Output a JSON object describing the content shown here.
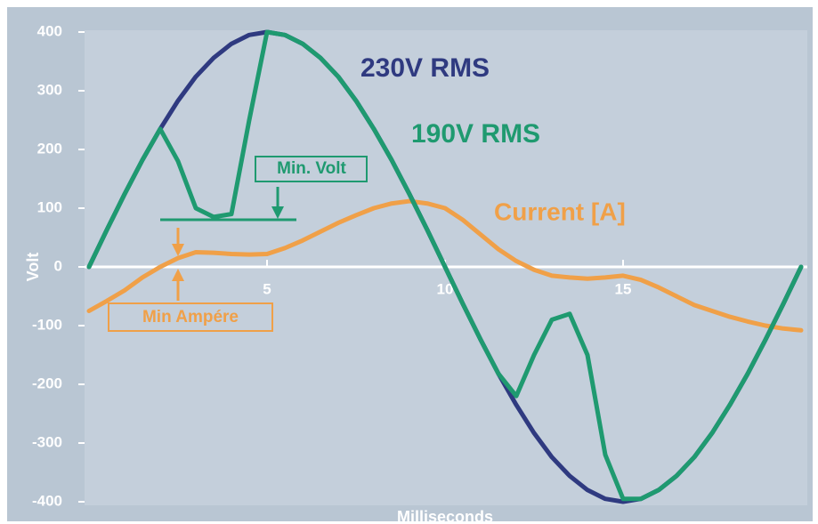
{
  "chart_data": {
    "type": "line",
    "x_label": "Milliseconds",
    "y_label": "Volt",
    "x": [
      0,
      0.5,
      1,
      1.5,
      2,
      2.5,
      3,
      3.5,
      4,
      4.5,
      5,
      5.5,
      6,
      6.5,
      7,
      7.5,
      8,
      8.5,
      9,
      9.5,
      10,
      10.5,
      11,
      11.5,
      12,
      12.5,
      13,
      13.5,
      14,
      14.5,
      15,
      15.5,
      16,
      16.5,
      17,
      17.5,
      18,
      18.5,
      19,
      19.5,
      20
    ],
    "series": [
      {
        "name": "230V RMS",
        "color": "#2f3a80",
        "values": [
          0,
          63,
          124,
          182,
          235,
          283,
          324,
          356,
          380,
          395,
          400,
          395,
          380,
          356,
          324,
          283,
          235,
          182,
          124,
          63,
          0,
          -63,
          -124,
          -182,
          -235,
          -283,
          -324,
          -356,
          -380,
          -395,
          -400,
          -395,
          -380,
          -356,
          -324,
          -283,
          -235,
          -182,
          -124,
          -63,
          0
        ]
      },
      {
        "name": "190V RMS",
        "color": "#1f9a70",
        "values": [
          0,
          63,
          124,
          182,
          235,
          180,
          100,
          85,
          90,
          250,
          400,
          395,
          380,
          356,
          324,
          283,
          235,
          182,
          124,
          63,
          0,
          -63,
          -124,
          -182,
          -220,
          -150,
          -90,
          -80,
          -150,
          -320,
          -395,
          -395,
          -380,
          -356,
          -324,
          -283,
          -235,
          -182,
          -124,
          -63,
          0
        ]
      },
      {
        "name": "Current [A]",
        "color": "#f0a048",
        "values": [
          -75,
          -58,
          -40,
          -18,
          0,
          15,
          25,
          24,
          22,
          21,
          22,
          32,
          45,
          60,
          75,
          88,
          100,
          108,
          112,
          108,
          100,
          80,
          55,
          30,
          10,
          -5,
          -15,
          -18,
          -20,
          -18,
          -15,
          -22,
          -35,
          -50,
          -65,
          -75,
          -85,
          -93,
          -100,
          -105,
          -108
        ]
      }
    ],
    "annotations": [
      "Min. Volt",
      "Min Ampére"
    ],
    "xlim": [
      0,
      20
    ],
    "xticks": [
      5,
      10,
      15
    ],
    "ylim": [
      -400,
      400
    ],
    "yticks": [
      400,
      300,
      200,
      100,
      0,
      -100,
      -200,
      -300,
      -400
    ]
  }
}
